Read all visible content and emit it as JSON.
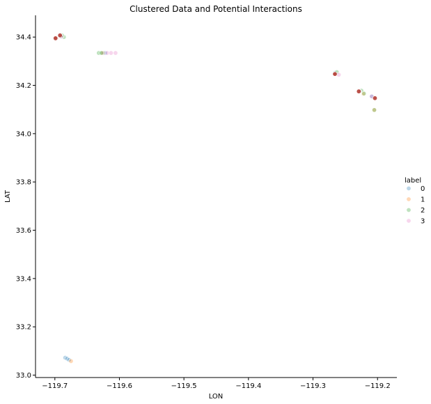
{
  "chart_data": {
    "type": "scatter",
    "title": "Clustered Data and Potential Interactions",
    "xlabel": "LON",
    "ylabel": "LAT",
    "xlim": [
      -119.73,
      -119.17
    ],
    "ylim": [
      32.99,
      34.49
    ],
    "xticks": [
      -119.7,
      -119.6,
      -119.5,
      -119.4,
      -119.3,
      -119.2
    ],
    "xtick_labels": [
      "−119.7",
      "−119.6",
      "−119.5",
      "−119.4",
      "−119.3",
      "−119.2"
    ],
    "yticks": [
      33.0,
      33.2,
      33.4,
      33.6,
      33.8,
      34.0,
      34.2,
      34.4
    ],
    "ytick_labels": [
      "33.0",
      "33.2",
      "33.4",
      "33.6",
      "33.8",
      "34.0",
      "34.2",
      "34.4"
    ],
    "grid": false,
    "legend": {
      "title": "label",
      "placement": "right"
    },
    "series": [
      {
        "name": "0",
        "color": "#1f77b4",
        "points": [
          {
            "x": -119.684,
            "y": 33.072
          },
          {
            "x": -119.681,
            "y": 33.068
          },
          {
            "x": -119.678,
            "y": 33.063
          },
          {
            "x": -119.625,
            "y": 34.334
          },
          {
            "x": -119.622,
            "y": 34.334
          },
          {
            "x": -119.266,
            "y": 34.252
          },
          {
            "x": -119.209,
            "y": 34.155
          },
          {
            "x": -119.691,
            "y": 34.404
          }
        ]
      },
      {
        "name": "1",
        "color": "#ff7f0e",
        "points": [
          {
            "x": -119.675,
            "y": 33.058
          },
          {
            "x": -119.626,
            "y": 34.334
          },
          {
            "x": -119.222,
            "y": 34.165
          },
          {
            "x": -119.205,
            "y": 34.098
          },
          {
            "x": -119.698,
            "y": 34.396
          },
          {
            "x": -119.266,
            "y": 34.248
          }
        ]
      },
      {
        "name": "2",
        "color": "#2ca02c",
        "points": [
          {
            "x": -119.632,
            "y": 34.334
          },
          {
            "x": -119.628,
            "y": 34.334
          },
          {
            "x": -119.686,
            "y": 34.4
          },
          {
            "x": -119.689,
            "y": 34.407
          },
          {
            "x": -119.263,
            "y": 34.255
          },
          {
            "x": -119.225,
            "y": 34.178
          },
          {
            "x": -119.221,
            "y": 34.166
          },
          {
            "x": -119.205,
            "y": 34.098
          }
        ]
      },
      {
        "name": "3",
        "color": "#e377c2",
        "points": [
          {
            "x": -119.619,
            "y": 34.334
          },
          {
            "x": -119.613,
            "y": 34.334
          },
          {
            "x": -119.606,
            "y": 34.334
          },
          {
            "x": -119.698,
            "y": 34.395
          },
          {
            "x": -119.692,
            "y": 34.409
          },
          {
            "x": -119.69,
            "y": 34.402
          },
          {
            "x": -119.266,
            "y": 34.246
          },
          {
            "x": -119.26,
            "y": 34.244
          },
          {
            "x": -119.228,
            "y": 34.175
          },
          {
            "x": -119.204,
            "y": 34.148
          },
          {
            "x": -119.209,
            "y": 34.154
          }
        ]
      },
      {
        "name": "",
        "color": "#b03a2e",
        "points": [
          {
            "x": -119.699,
            "y": 34.395
          },
          {
            "x": -119.692,
            "y": 34.407
          },
          {
            "x": -119.266,
            "y": 34.247
          },
          {
            "x": -119.229,
            "y": 34.175
          },
          {
            "x": -119.204,
            "y": 34.147
          }
        ]
      }
    ]
  }
}
